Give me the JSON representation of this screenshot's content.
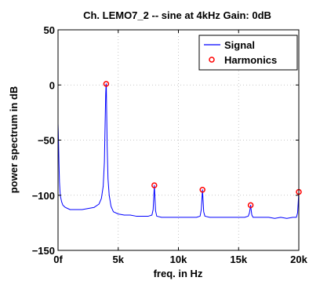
{
  "chart_data": {
    "type": "line",
    "title": "Ch. LEMO7_2 -- sine at 4kHz  Gain: 0dB",
    "xlabel": "freq. in Hz",
    "ylabel": "power spectrum in dB",
    "xlim": [
      0,
      20000
    ],
    "ylim": [
      -150,
      50
    ],
    "x_ticks": [
      0,
      5000,
      10000,
      15000,
      20000
    ],
    "x_tick_labels": [
      "0f",
      "5k",
      "10k",
      "15k",
      "20k"
    ],
    "y_ticks": [
      50,
      0,
      -50,
      -100,
      -150
    ],
    "y_tick_labels": [
      "50",
      "0",
      "−50",
      "−100",
      "−150"
    ],
    "grid": true,
    "legend_position": "top-right",
    "series": [
      {
        "name": "Signal",
        "color": "#0000ff",
        "x": [
          0,
          40,
          80,
          120,
          160,
          200,
          300,
          400,
          600,
          800,
          1000,
          1500,
          2000,
          2500,
          3000,
          3400,
          3600,
          3750,
          3850,
          3920,
          3960,
          3990,
          4000,
          4010,
          4040,
          4080,
          4150,
          4250,
          4400,
          4600,
          5000,
          5500,
          6000,
          6500,
          7000,
          7500,
          7800,
          7900,
          7960,
          8000,
          8040,
          8100,
          8200,
          8600,
          9000,
          9500,
          10000,
          10500,
          11000,
          11500,
          11800,
          11900,
          11960,
          12000,
          12040,
          12100,
          12200,
          12600,
          13000,
          13500,
          14000,
          14500,
          15000,
          15500,
          15800,
          15900,
          15960,
          16000,
          16040,
          16100,
          16200,
          16600,
          17000,
          17500,
          18000,
          18500,
          19000,
          19500,
          19800,
          19900,
          19960,
          20000
        ],
        "y": [
          -35,
          -50,
          -72,
          -88,
          -96,
          -101,
          -106,
          -109,
          -111,
          -112,
          -113,
          -113,
          -113,
          -112,
          -111,
          -108,
          -103,
          -92,
          -70,
          -30,
          -8,
          0,
          1,
          0,
          -25,
          -55,
          -85,
          -100,
          -110,
          -115,
          -117,
          -118,
          -118,
          -119,
          -119,
          -119,
          -118,
          -113,
          -100,
          -91,
          -100,
          -114,
          -119,
          -120,
          -120,
          -120,
          -120,
          -120,
          -120,
          -120,
          -119,
          -113,
          -102,
          -95,
          -103,
          -115,
          -119,
          -120,
          -120,
          -120,
          -120,
          -120,
          -120,
          -120,
          -119,
          -116,
          -112,
          -109,
          -113,
          -118,
          -120,
          -120,
          -120,
          -120,
          -121,
          -120,
          -121,
          -120,
          -120,
          -116,
          -105,
          -97
        ]
      },
      {
        "name": "Harmonics",
        "color": "#ff0000",
        "marker": "circle",
        "x": [
          4000,
          8000,
          12000,
          16000,
          20000
        ],
        "y": [
          1,
          -91,
          -95,
          -109,
          -97
        ]
      }
    ]
  }
}
